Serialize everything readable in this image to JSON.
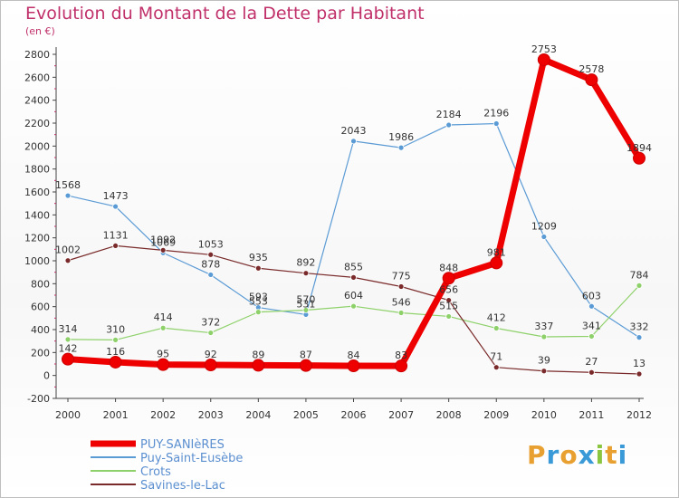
{
  "title": "Evolution du Montant de la Dette par Habitant",
  "subtitle": "(en €)",
  "logo_text": "Proxiti",
  "chart_data": {
    "type": "line",
    "title": "Evolution du Montant de la Dette par Habitant",
    "ylabel": "(en €)",
    "xlabel": "",
    "ylim": [
      -200,
      2800
    ],
    "yticks": [
      -200,
      0,
      200,
      400,
      600,
      800,
      1000,
      1200,
      1400,
      1600,
      1800,
      2000,
      2200,
      2400,
      2600,
      2800
    ],
    "grid": false,
    "legend": "bottom-left",
    "categories": [
      "2000",
      "2001",
      "2002",
      "2003",
      "2004",
      "2005",
      "2006",
      "2007",
      "2008",
      "2009",
      "2010",
      "2011",
      "2012"
    ],
    "series": [
      {
        "name": "PUY-SANIèRES",
        "color": "#ee0000",
        "values": [
          142,
          116,
          95,
          92,
          89,
          87,
          84,
          83,
          848,
          981,
          2753,
          2578,
          1894
        ],
        "labels": [
          "142",
          "116",
          "95",
          "92",
          "89",
          "87",
          "84",
          "83",
          "848",
          "981",
          "2753",
          "2578",
          "1894"
        ]
      },
      {
        "name": "Puy-Saint-Eusèbe",
        "color": "#5b9bd5",
        "values": [
          1568,
          1473,
          1069,
          878,
          593,
          531,
          2043,
          1986,
          2184,
          2196,
          1209,
          603,
          332
        ],
        "labels": [
          "1568",
          "1473",
          "1069",
          "878",
          "593",
          "531",
          "2043",
          "1986",
          "2184",
          "2196",
          "1209",
          "603",
          "332"
        ]
      },
      {
        "name": "Crots",
        "color": "#8ed16a",
        "values": [
          314,
          310,
          414,
          372,
          553,
          570,
          604,
          546,
          515,
          412,
          337,
          341,
          784
        ],
        "labels": [
          "314",
          "310",
          "414",
          "372",
          "553",
          "570",
          "604",
          "546",
          "515",
          "412",
          "337",
          "341",
          "784"
        ]
      },
      {
        "name": "Savines-le-Lac",
        "color": "#7a2a2a",
        "values": [
          1002,
          1131,
          1092,
          1053,
          935,
          892,
          855,
          775,
          656,
          71,
          39,
          27,
          13
        ],
        "labels": [
          "1002",
          "1131",
          "1092",
          "1053",
          "935",
          "892",
          "855",
          "775",
          "656",
          "71",
          "39",
          "27",
          "13"
        ]
      }
    ]
  }
}
